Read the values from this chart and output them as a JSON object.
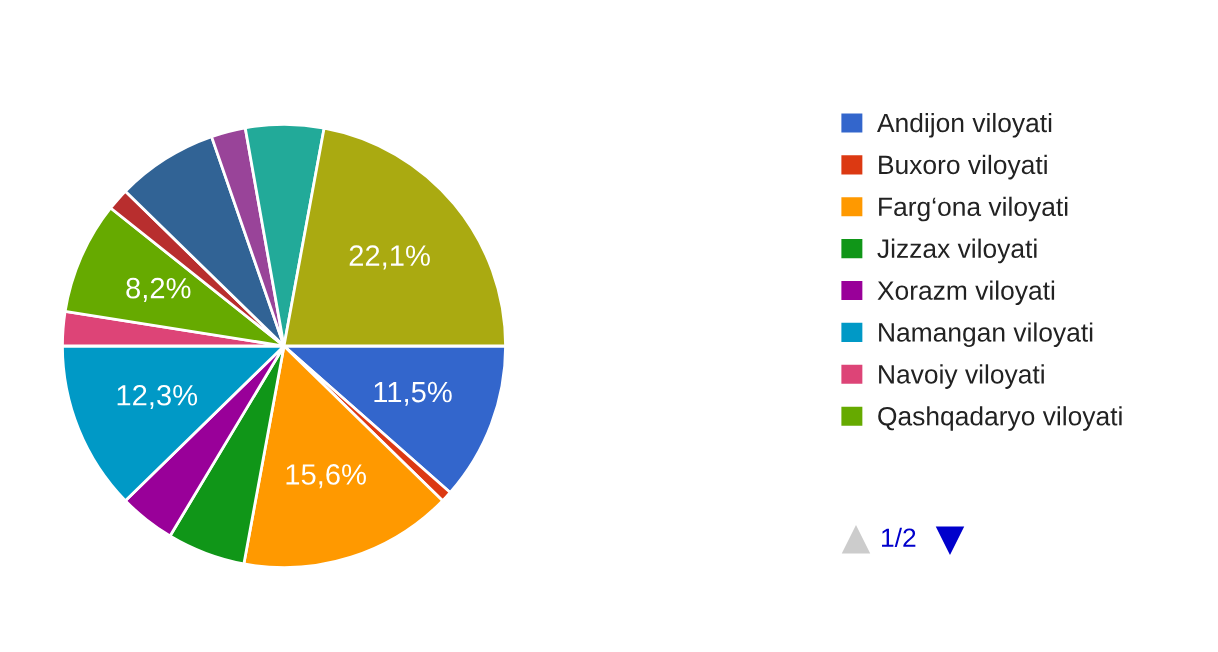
{
  "chart_data": {
    "type": "pie",
    "categories": [
      "Andijon viloyati",
      "Buxoro viloyati",
      "Farg‘ona viloyati",
      "Jizzax viloyati",
      "Xorazm viloyati",
      "Namangan viloyati",
      "Navoiy viloyati",
      "Qashqadaryo viloyati",
      null,
      null,
      null,
      null,
      null
    ],
    "values": [
      11.5,
      0.8,
      15.6,
      5.7,
      4.1,
      12.3,
      2.5,
      8.2,
      1.6,
      7.4,
      2.5,
      5.7,
      22.1
    ],
    "colors": [
      "#3366cc",
      "#dc3912",
      "#ff9900",
      "#109618",
      "#990099",
      "#0099c6",
      "#dd4477",
      "#66aa00",
      "#b82e2e",
      "#316395",
      "#994499",
      "#22aa99",
      "#aaaa11"
    ],
    "value_labels": [
      "11,5%",
      null,
      "15,6%",
      null,
      null,
      "12,3%",
      null,
      "8,2%",
      null,
      null,
      null,
      null,
      "22,1%"
    ],
    "legend": "right",
    "annotations": [
      "1/2"
    ]
  }
}
